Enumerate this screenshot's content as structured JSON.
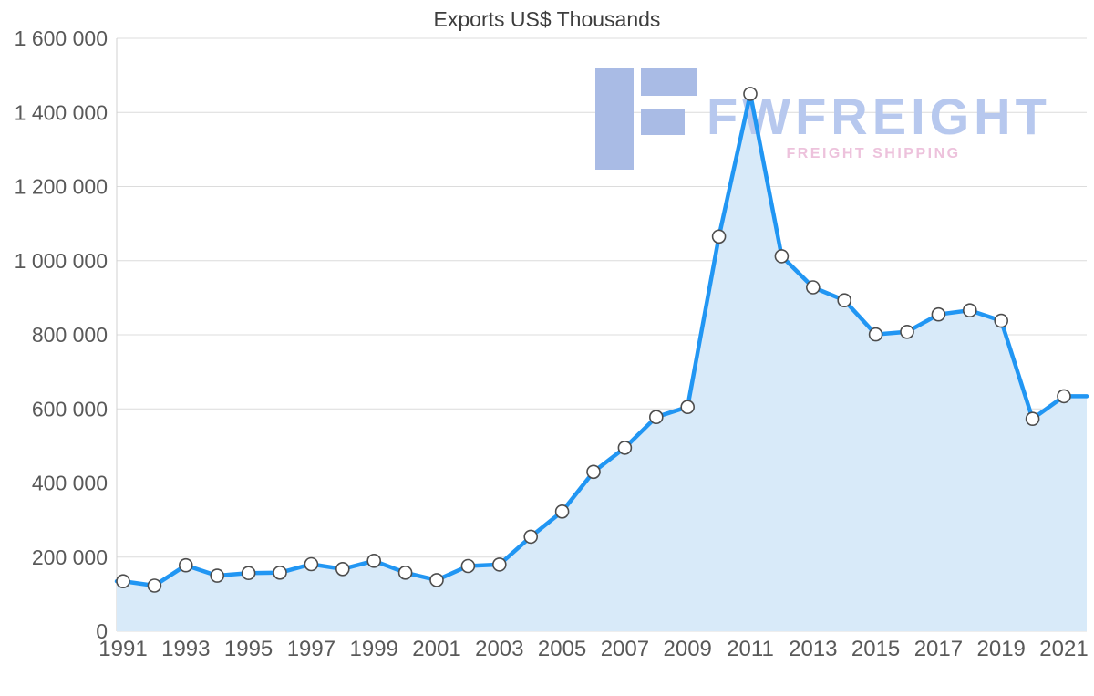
{
  "watermark": {
    "brand": "FWFREIGHT",
    "tagline": "FREIGHT SHIPPING",
    "logo_color": "#a9bbe5",
    "brand_color": "#b7c8ee",
    "tagline_color": "#edc2dc"
  },
  "chart_data": {
    "type": "area",
    "title": "Exports US$ Thousands",
    "xlabel": "",
    "ylabel": "",
    "x": [
      1991,
      1992,
      1993,
      1994,
      1995,
      1996,
      1997,
      1998,
      1999,
      2000,
      2001,
      2002,
      2003,
      2004,
      2005,
      2006,
      2007,
      2008,
      2009,
      2010,
      2011,
      2012,
      2013,
      2014,
      2015,
      2016,
      2017,
      2018,
      2019,
      2020,
      2021
    ],
    "values": [
      135000,
      123000,
      178000,
      150000,
      157000,
      158000,
      181000,
      168000,
      190000,
      158000,
      138000,
      176000,
      180000,
      255000,
      323000,
      430000,
      495000,
      578000,
      605000,
      1065000,
      1450000,
      1012000,
      928000,
      893000,
      801000,
      808000,
      855000,
      866000,
      838000,
      573000,
      634000
    ],
    "ylim": [
      0,
      1600000
    ],
    "y_ticks": [
      0,
      200000,
      400000,
      600000,
      800000,
      1000000,
      1200000,
      1400000,
      1600000
    ],
    "y_tick_labels": [
      "0",
      "200 000",
      "400 000",
      "600 000",
      "800 000",
      "1 000 000",
      "1 200 000",
      "1 400 000",
      "1 600 000"
    ],
    "x_tick_labels": [
      "1991",
      "1993",
      "1995",
      "1997",
      "1999",
      "2001",
      "2003",
      "2005",
      "2007",
      "2009",
      "2011",
      "2013",
      "2015",
      "2017",
      "2019",
      "2021"
    ],
    "grid": "horizontal",
    "legend": "none",
    "colors": {
      "line": "#2196f3",
      "fill": "#d8eaf9",
      "marker_fill": "#ffffff",
      "marker_stroke": "#4d4d4d",
      "grid": "#dcdcdc",
      "axis_text": "#595959"
    }
  }
}
